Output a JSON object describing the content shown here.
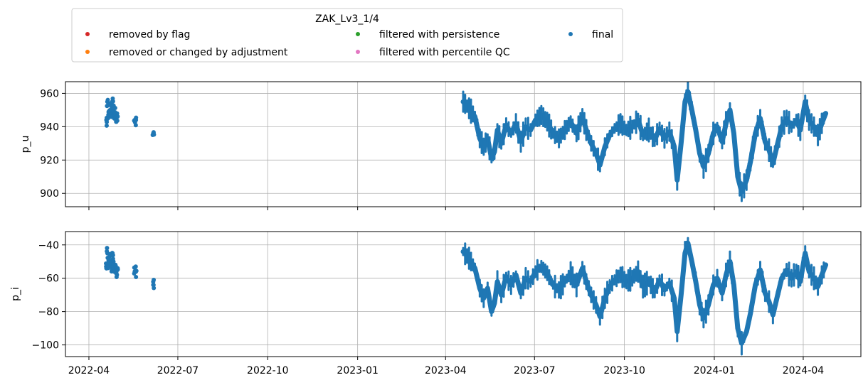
{
  "chart_data": {
    "type": "scatter",
    "title": "",
    "legend": {
      "title": "ZAK_Lv3_1/4",
      "placement": "top-center",
      "entries": [
        {
          "name": "removed by flag",
          "color": "#d62728"
        },
        {
          "name": "removed or changed by adjustment",
          "color": "#ff7f0e"
        },
        {
          "name": "filtered with persistence",
          "color": "#2ca02c"
        },
        {
          "name": "filtered with percentile QC",
          "color": "#e377c2"
        },
        {
          "name": "final",
          "color": "#1f77b4"
        }
      ]
    },
    "grid": true,
    "x_axis": {
      "type": "date",
      "range": [
        "2022-03-08",
        "2024-05-30"
      ],
      "ticks": [
        {
          "date": "2022-04-01",
          "label": "2022-04"
        },
        {
          "date": "2022-07-01",
          "label": "2022-07"
        },
        {
          "date": "2022-10-01",
          "label": "2022-10"
        },
        {
          "date": "2023-01-01",
          "label": "2023-01"
        },
        {
          "date": "2023-04-01",
          "label": "2023-04"
        },
        {
          "date": "2023-07-01",
          "label": "2023-07"
        },
        {
          "date": "2023-10-01",
          "label": "2023-10"
        },
        {
          "date": "2024-01-01",
          "label": "2024-01"
        },
        {
          "date": "2024-04-01",
          "label": "2024-04"
        }
      ]
    },
    "panels": [
      {
        "ylabel": "p_u",
        "ylim": [
          892,
          967
        ],
        "yticks": [
          960,
          940,
          920,
          900
        ],
        "series": [
          {
            "name": "final",
            "color": "#1f77b4",
            "early_points": [
              [
                "2022-04-19",
                944
              ],
              [
                "2022-04-20",
                955
              ],
              [
                "2022-04-21",
                947
              ],
              [
                "2022-04-22",
                949
              ],
              [
                "2022-04-23",
                953
              ],
              [
                "2022-04-24",
                946
              ],
              [
                "2022-04-25",
                955
              ],
              [
                "2022-04-26",
                950
              ],
              [
                "2022-04-27",
                945
              ],
              [
                "2022-04-28",
                948
              ],
              [
                "2022-04-29",
                943
              ],
              [
                "2022-04-30",
                946
              ],
              [
                "2022-05-18",
                944
              ],
              [
                "2022-05-19",
                944
              ],
              [
                "2022-06-06",
                936
              ]
            ],
            "trace": [
              [
                "2023-04-19",
                955
              ],
              [
                "2023-04-25",
                951
              ],
              [
                "2023-05-01",
                946
              ],
              [
                "2023-05-06",
                933
              ],
              [
                "2023-05-10",
                928
              ],
              [
                "2023-05-14",
                933
              ],
              [
                "2023-05-18",
                921
              ],
              [
                "2023-05-21",
                925
              ],
              [
                "2023-05-24",
                938
              ],
              [
                "2023-05-28",
                930
              ],
              [
                "2023-06-02",
                941
              ],
              [
                "2023-06-07",
                936
              ],
              [
                "2023-06-12",
                942
              ],
              [
                "2023-06-17",
                931
              ],
              [
                "2023-06-22",
                940
              ],
              [
                "2023-06-27",
                938
              ],
              [
                "2023-07-02",
                944
              ],
              [
                "2023-07-08",
                947
              ],
              [
                "2023-07-14",
                943
              ],
              [
                "2023-07-20",
                936
              ],
              [
                "2023-07-26",
                933
              ],
              [
                "2023-08-01",
                938
              ],
              [
                "2023-08-07",
                943
              ],
              [
                "2023-08-13",
                936
              ],
              [
                "2023-08-19",
                946
              ],
              [
                "2023-08-23",
                938
              ],
              [
                "2023-08-28",
                930
              ],
              [
                "2023-09-02",
                924
              ],
              [
                "2023-09-06",
                917
              ],
              [
                "2023-09-11",
                928
              ],
              [
                "2023-09-16",
                935
              ],
              [
                "2023-09-21",
                939
              ],
              [
                "2023-09-27",
                942
              ],
              [
                "2023-10-03",
                938
              ],
              [
                "2023-10-09",
                940
              ],
              [
                "2023-10-15",
                944
              ],
              [
                "2023-10-20",
                935
              ],
              [
                "2023-10-26",
                938
              ],
              [
                "2023-11-01",
                932
              ],
              [
                "2023-11-06",
                939
              ],
              [
                "2023-11-11",
                933
              ],
              [
                "2023-11-16",
                937
              ],
              [
                "2023-11-21",
                928
              ],
              [
                "2023-11-24",
                908
              ],
              [
                "2023-11-28",
                930
              ],
              [
                "2023-12-02",
                955
              ],
              [
                "2023-12-05",
                961
              ],
              [
                "2023-12-09",
                950
              ],
              [
                "2023-12-13",
                938
              ],
              [
                "2023-12-17",
                924
              ],
              [
                "2023-12-21",
                916
              ],
              [
                "2023-12-26",
                924
              ],
              [
                "2023-12-31",
                936
              ],
              [
                "2024-01-04",
                940
              ],
              [
                "2024-01-09",
                931
              ],
              [
                "2024-01-13",
                942
              ],
              [
                "2024-01-17",
                950
              ],
              [
                "2024-01-21",
                936
              ],
              [
                "2024-01-25",
                910
              ],
              [
                "2024-01-29",
                901
              ],
              [
                "2024-02-03",
                908
              ],
              [
                "2024-02-07",
                919
              ],
              [
                "2024-02-12",
                936
              ],
              [
                "2024-02-17",
                945
              ],
              [
                "2024-02-22",
                931
              ],
              [
                "2024-02-26",
                926
              ],
              [
                "2024-03-01",
                918
              ],
              [
                "2024-03-05",
                928
              ],
              [
                "2024-03-10",
                940
              ],
              [
                "2024-03-15",
                945
              ],
              [
                "2024-03-20",
                940
              ],
              [
                "2024-03-25",
                944
              ],
              [
                "2024-03-29",
                938
              ],
              [
                "2024-04-03",
                955
              ],
              [
                "2024-04-07",
                944
              ],
              [
                "2024-04-12",
                940
              ],
              [
                "2024-04-16",
                935
              ],
              [
                "2024-04-20",
                942
              ],
              [
                "2024-04-24",
                948
              ]
            ]
          }
        ]
      },
      {
        "ylabel": "p_i",
        "ylim": [
          -107,
          -32
        ],
        "yticks": [
          -40,
          -60,
          -80,
          -100
        ],
        "series": [
          {
            "name": "final",
            "color": "#1f77b4",
            "early_points": [
              [
                "2022-04-19",
                -54
              ],
              [
                "2022-04-20",
                -45
              ],
              [
                "2022-04-21",
                -52
              ],
              [
                "2022-04-22",
                -50
              ],
              [
                "2022-04-23",
                -46
              ],
              [
                "2022-04-24",
                -53
              ],
              [
                "2022-04-25",
                -45
              ],
              [
                "2022-04-26",
                -50
              ],
              [
                "2022-04-27",
                -56
              ],
              [
                "2022-04-28",
                -52
              ],
              [
                "2022-04-29",
                -57
              ],
              [
                "2022-04-30",
                -55
              ],
              [
                "2022-05-18",
                -56
              ],
              [
                "2022-05-19",
                -56
              ],
              [
                "2022-06-06",
                -64
              ]
            ],
            "trace": [
              [
                "2023-04-19",
                -44
              ],
              [
                "2023-04-25",
                -48
              ],
              [
                "2023-05-01",
                -54
              ],
              [
                "2023-05-06",
                -66
              ],
              [
                "2023-05-10",
                -72
              ],
              [
                "2023-05-14",
                -66
              ],
              [
                "2023-05-18",
                -80
              ],
              [
                "2023-05-21",
                -75
              ],
              [
                "2023-05-24",
                -62
              ],
              [
                "2023-05-28",
                -70
              ],
              [
                "2023-06-02",
                -59
              ],
              [
                "2023-06-07",
                -64
              ],
              [
                "2023-06-12",
                -58
              ],
              [
                "2023-06-17",
                -69
              ],
              [
                "2023-06-22",
                -60
              ],
              [
                "2023-06-27",
                -62
              ],
              [
                "2023-07-02",
                -56
              ],
              [
                "2023-07-08",
                -53
              ],
              [
                "2023-07-14",
                -57
              ],
              [
                "2023-07-20",
                -64
              ],
              [
                "2023-07-26",
                -67
              ],
              [
                "2023-08-01",
                -62
              ],
              [
                "2023-08-07",
                -57
              ],
              [
                "2023-08-13",
                -64
              ],
              [
                "2023-08-19",
                -54
              ],
              [
                "2023-08-23",
                -62
              ],
              [
                "2023-08-28",
                -70
              ],
              [
                "2023-09-02",
                -76
              ],
              [
                "2023-09-06",
                -83
              ],
              [
                "2023-09-11",
                -72
              ],
              [
                "2023-09-16",
                -65
              ],
              [
                "2023-09-21",
                -61
              ],
              [
                "2023-09-27",
                -58
              ],
              [
                "2023-10-03",
                -62
              ],
              [
                "2023-10-09",
                -60
              ],
              [
                "2023-10-15",
                -56
              ],
              [
                "2023-10-20",
                -65
              ],
              [
                "2023-10-26",
                -62
              ],
              [
                "2023-11-01",
                -68
              ],
              [
                "2023-11-06",
                -61
              ],
              [
                "2023-11-11",
                -67
              ],
              [
                "2023-11-16",
                -63
              ],
              [
                "2023-11-21",
                -72
              ],
              [
                "2023-11-24",
                -92
              ],
              [
                "2023-11-28",
                -70
              ],
              [
                "2023-12-02",
                -45
              ],
              [
                "2023-12-05",
                -39
              ],
              [
                "2023-12-09",
                -50
              ],
              [
                "2023-12-13",
                -62
              ],
              [
                "2023-12-17",
                -76
              ],
              [
                "2023-12-21",
                -84
              ],
              [
                "2023-12-26",
                -76
              ],
              [
                "2023-12-31",
                -64
              ],
              [
                "2024-01-04",
                -60
              ],
              [
                "2024-01-09",
                -69
              ],
              [
                "2024-01-13",
                -58
              ],
              [
                "2024-01-17",
                -50
              ],
              [
                "2024-01-21",
                -64
              ],
              [
                "2024-01-25",
                -90
              ],
              [
                "2024-01-29",
                -99
              ],
              [
                "2024-02-03",
                -92
              ],
              [
                "2024-02-07",
                -81
              ],
              [
                "2024-02-12",
                -64
              ],
              [
                "2024-02-17",
                -55
              ],
              [
                "2024-02-22",
                -69
              ],
              [
                "2024-02-26",
                -74
              ],
              [
                "2024-03-01",
                -82
              ],
              [
                "2024-03-05",
                -72
              ],
              [
                "2024-03-10",
                -60
              ],
              [
                "2024-03-15",
                -55
              ],
              [
                "2024-03-20",
                -60
              ],
              [
                "2024-03-25",
                -56
              ],
              [
                "2024-03-29",
                -62
              ],
              [
                "2024-04-03",
                -45
              ],
              [
                "2024-04-07",
                -56
              ],
              [
                "2024-04-12",
                -60
              ],
              [
                "2024-04-16",
                -65
              ],
              [
                "2024-04-20",
                -58
              ],
              [
                "2024-04-24",
                -52
              ]
            ]
          }
        ]
      }
    ]
  }
}
